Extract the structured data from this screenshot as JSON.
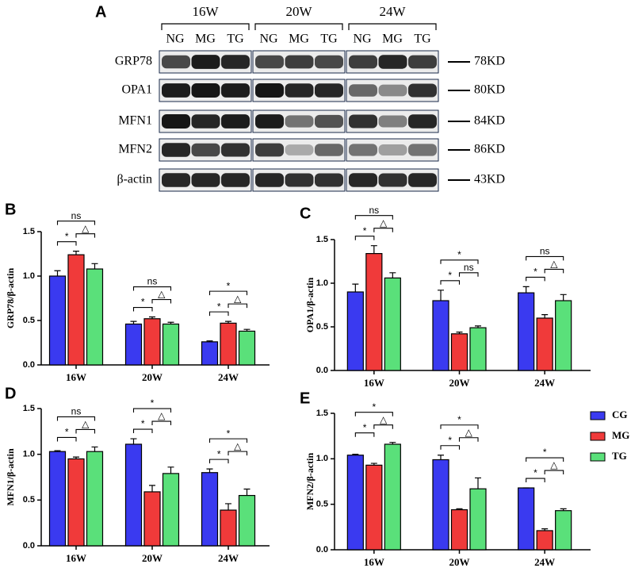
{
  "blot": {
    "panel": "A",
    "groups": [
      "16W",
      "20W",
      "24W"
    ],
    "lanes": [
      "NG",
      "MG",
      "TG"
    ],
    "rows": [
      {
        "protein": "GRP78",
        "size": "78KD"
      },
      {
        "protein": "OPA1",
        "size": "80KD"
      },
      {
        "protein": "MFN1",
        "size": "84KD"
      },
      {
        "protein": "MFN2",
        "size": "86KD"
      },
      {
        "protein": "β-actin",
        "size": "43KD"
      }
    ]
  },
  "chart_data": [
    {
      "type": "bar",
      "panel": "B",
      "y_label": "GRP78/β-actin",
      "categories": [
        "16W",
        "20W",
        "24W"
      ],
      "series": [
        {
          "name": "CG",
          "color": "#3a3af0",
          "values": [
            1.0,
            0.46,
            0.26
          ],
          "errors": [
            0.06,
            0.03,
            0.01
          ]
        },
        {
          "name": "MG",
          "color": "#f03a3a",
          "values": [
            1.24,
            0.52,
            0.47
          ],
          "errors": [
            0.04,
            0.02,
            0.02
          ]
        },
        {
          "name": "TG",
          "color": "#5ae07a",
          "values": [
            1.08,
            0.46,
            0.38
          ],
          "errors": [
            0.06,
            0.02,
            0.02
          ]
        }
      ],
      "annotations": [
        [
          "*",
          "△",
          "ns"
        ],
        [
          "*",
          "△",
          "ns"
        ],
        [
          "*",
          "△",
          "*"
        ]
      ],
      "ylim": [
        0,
        1.5
      ],
      "yticks": [
        {
          "value": 0,
          "label": "0.0"
        },
        0.5,
        {
          "value": 1,
          "label": "1.0"
        },
        1.5
      ]
    },
    {
      "type": "bar",
      "panel": "C",
      "y_label": "OPA1/β-actin",
      "categories": [
        "16W",
        "20W",
        "24W"
      ],
      "series": [
        {
          "name": "CG",
          "color": "#3a3af0",
          "values": [
            0.9,
            0.8,
            0.89
          ],
          "errors": [
            0.09,
            0.12,
            0.07
          ]
        },
        {
          "name": "MG",
          "color": "#f03a3a",
          "values": [
            1.34,
            0.42,
            0.6
          ],
          "errors": [
            0.09,
            0.02,
            0.04
          ]
        },
        {
          "name": "TG",
          "color": "#5ae07a",
          "values": [
            1.06,
            0.49,
            0.8
          ],
          "errors": [
            0.06,
            0.02,
            0.07
          ]
        }
      ],
      "annotations": [
        [
          "*",
          "△",
          "ns"
        ],
        [
          "*",
          "ns",
          "*"
        ],
        [
          "*",
          "△",
          "ns"
        ]
      ],
      "ylim": [
        0,
        1.5
      ],
      "yticks": [
        {
          "value": 0,
          "label": "0.0"
        },
        0.5,
        {
          "value": 1,
          "label": "1.0"
        },
        1.5
      ]
    },
    {
      "type": "bar",
      "panel": "D",
      "y_label": "MFN1/β-actin",
      "categories": [
        "16W",
        "20W",
        "24W"
      ],
      "series": [
        {
          "name": "CG",
          "color": "#3a3af0",
          "values": [
            1.03,
            1.11,
            0.8
          ],
          "errors": [
            0.01,
            0.06,
            0.04
          ]
        },
        {
          "name": "MG",
          "color": "#f03a3a",
          "values": [
            0.95,
            0.59,
            0.39
          ],
          "errors": [
            0.02,
            0.07,
            0.07
          ]
        },
        {
          "name": "TG",
          "color": "#5ae07a",
          "values": [
            1.03,
            0.79,
            0.55
          ],
          "errors": [
            0.05,
            0.07,
            0.07
          ]
        }
      ],
      "annotations": [
        [
          "*",
          "△",
          "ns"
        ],
        [
          "*",
          "△",
          "*"
        ],
        [
          "*",
          "△",
          "*"
        ]
      ],
      "ylim": [
        0,
        1.5
      ],
      "yticks": [
        {
          "value": 0,
          "label": "0.0"
        },
        0.5,
        {
          "value": 1,
          "label": "1.0"
        },
        1.5
      ]
    },
    {
      "type": "bar",
      "panel": "E",
      "y_label": "MFN2/β-actin",
      "categories": [
        "16W",
        "20W",
        "24W"
      ],
      "series": [
        {
          "name": "CG",
          "color": "#3a3af0",
          "values": [
            1.04,
            0.99,
            0.68
          ],
          "errors": [
            0.01,
            0.05,
            0
          ]
        },
        {
          "name": "MG",
          "color": "#f03a3a",
          "values": [
            0.93,
            0.44,
            0.21
          ],
          "errors": [
            0.02,
            0.01,
            0.02
          ]
        },
        {
          "name": "TG",
          "color": "#5ae07a",
          "values": [
            1.16,
            0.67,
            0.43
          ],
          "errors": [
            0.02,
            0.12,
            0.02
          ]
        }
      ],
      "annotations": [
        [
          "*",
          "△",
          "*"
        ],
        [
          "*",
          "△",
          "*"
        ],
        [
          "*",
          "△",
          "*"
        ]
      ],
      "ylim": [
        0,
        1.5
      ],
      "yticks": [
        {
          "value": 0,
          "label": "0.0"
        },
        0.5,
        {
          "value": 1,
          "label": "1.0"
        },
        1.5
      ],
      "legend": "right"
    }
  ]
}
